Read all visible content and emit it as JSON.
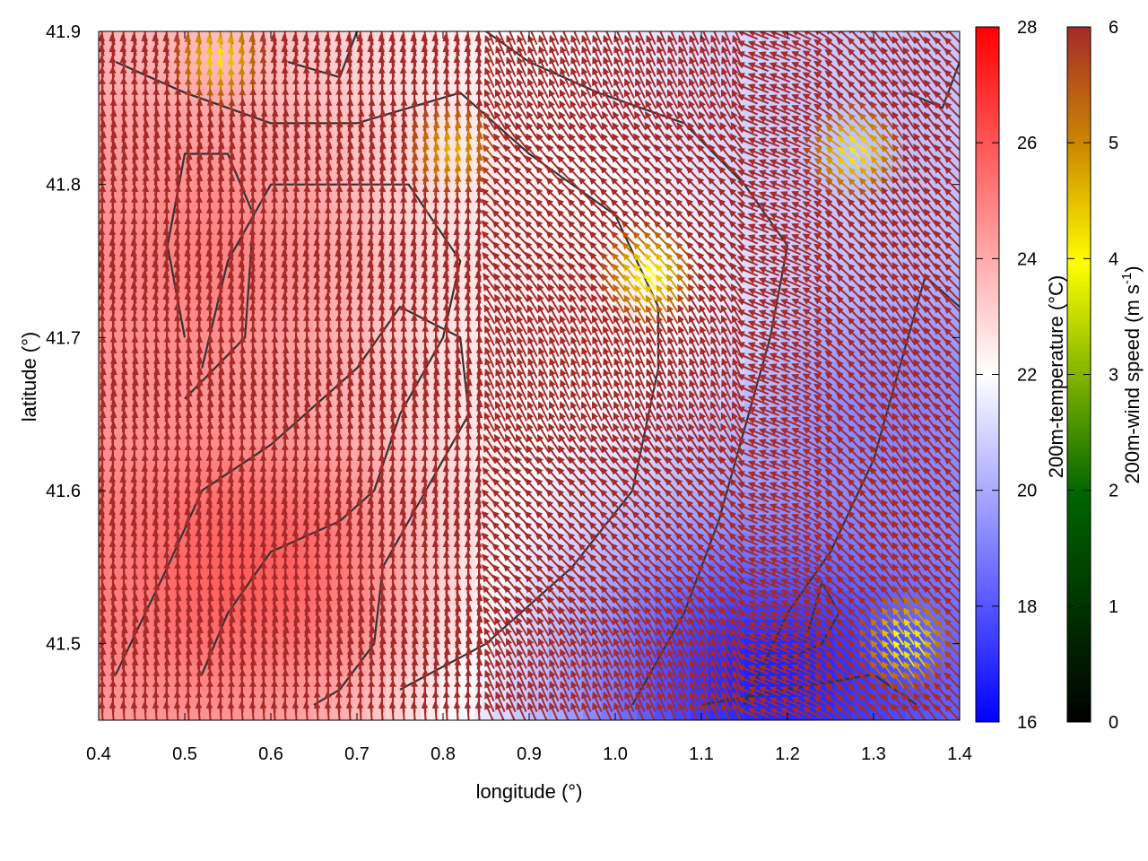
{
  "chart_data": {
    "type": "heatmap",
    "xlabel": "longitude (°)",
    "ylabel": "latitude (°)",
    "xlim": [
      0.4,
      1.4
    ],
    "ylim": [
      41.45,
      41.9
    ],
    "x_ticks": [
      "0.4",
      "0.5",
      "0.6",
      "0.7",
      "0.8",
      "0.9",
      "1.0",
      "1.1",
      "1.2",
      "1.3",
      "1.4"
    ],
    "y_ticks": [
      "41.5",
      "41.6",
      "41.7",
      "41.8",
      "41.9"
    ],
    "temperature_colorbar": {
      "label": "200m-temperature (°C)",
      "range": [
        16,
        28
      ],
      "ticks": [
        "16",
        "18",
        "20",
        "22",
        "24",
        "26",
        "28"
      ],
      "colors": [
        "#0000ff",
        "#ffffff",
        "#ff0000"
      ]
    },
    "wind_colorbar": {
      "label_prefix": "200m-wind speed (m s",
      "label_exp": "-1",
      "label_suffix": ")",
      "range": [
        0,
        6
      ],
      "ticks": [
        "0",
        "1",
        "2",
        "3",
        "4",
        "5",
        "6"
      ],
      "colors": [
        "#000000",
        "#006600",
        "#ffff00",
        "#cc8800",
        "#a52a2a"
      ]
    },
    "temperature_field_regions": [
      {
        "desc": "cold core southeast",
        "lon": 1.18,
        "lat": 41.48,
        "value": 16.5
      },
      {
        "desc": "cool east edge",
        "lon": 1.32,
        "lat": 41.65,
        "value": 19
      },
      {
        "desc": "warm southwest",
        "lon": 0.58,
        "lat": 41.55,
        "value": 26
      },
      {
        "desc": "warm west",
        "lon": 0.52,
        "lat": 41.75,
        "value": 25
      },
      {
        "desc": "mild center",
        "lon": 1.0,
        "lat": 41.72,
        "value": 22.5
      },
      {
        "desc": "cool northeast",
        "lon": 1.3,
        "lat": 41.82,
        "value": 20.5
      }
    ],
    "wind_field": {
      "dominant_speed": 6,
      "low_speed_zones": [
        {
          "lon": 1.04,
          "lat": 41.74,
          "speed": 3.8
        },
        {
          "lon": 0.54,
          "lat": 41.88,
          "speed": 4
        },
        {
          "lon": 1.34,
          "lat": 41.5,
          "speed": 3.5
        },
        {
          "lon": 0.81,
          "lat": 41.82,
          "speed": 4.5
        },
        {
          "lon": 1.28,
          "lat": 41.82,
          "speed": 3.8
        }
      ]
    }
  }
}
